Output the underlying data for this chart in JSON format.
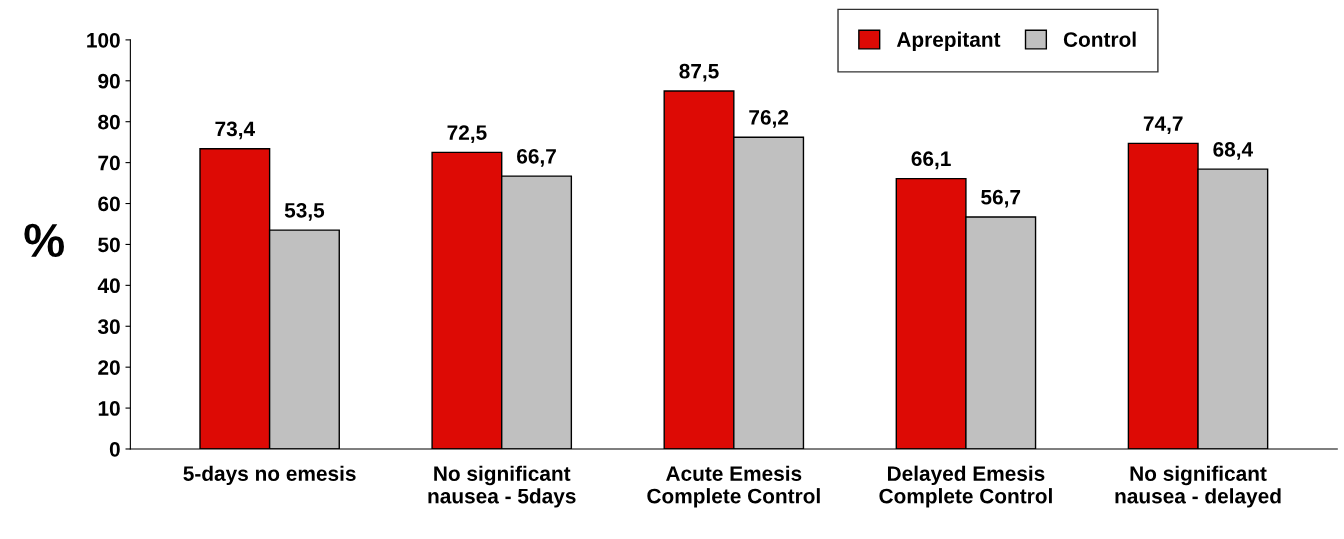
{
  "chart_data": {
    "type": "bar",
    "ylabel": "%",
    "categories": [
      "5-days no emesis",
      "No significant\nnausea - 5days",
      "Acute Emesis\nComplete Control",
      "Delayed Emesis\nComplete Control",
      "No significant\nnausea - delayed"
    ],
    "series": [
      {
        "name": "Aprepitant",
        "color": "#dd0a05",
        "values": [
          73.4,
          72.5,
          87.5,
          66.1,
          74.7
        ],
        "value_labels": [
          "73,4",
          "72,5",
          "87,5",
          "66,1",
          "74,7"
        ]
      },
      {
        "name": "Control",
        "color": "#c0c0c0",
        "values": [
          53.5,
          66.7,
          76.2,
          56.7,
          68.4
        ],
        "value_labels": [
          "53,5",
          "66,7",
          "76,2",
          "56,7",
          "68,4"
        ]
      }
    ],
    "ylim": [
      0,
      100
    ],
    "yticks": [
      0,
      10,
      20,
      30,
      40,
      50,
      60,
      70,
      80,
      90,
      100
    ],
    "grid": false,
    "legend": "top right"
  }
}
